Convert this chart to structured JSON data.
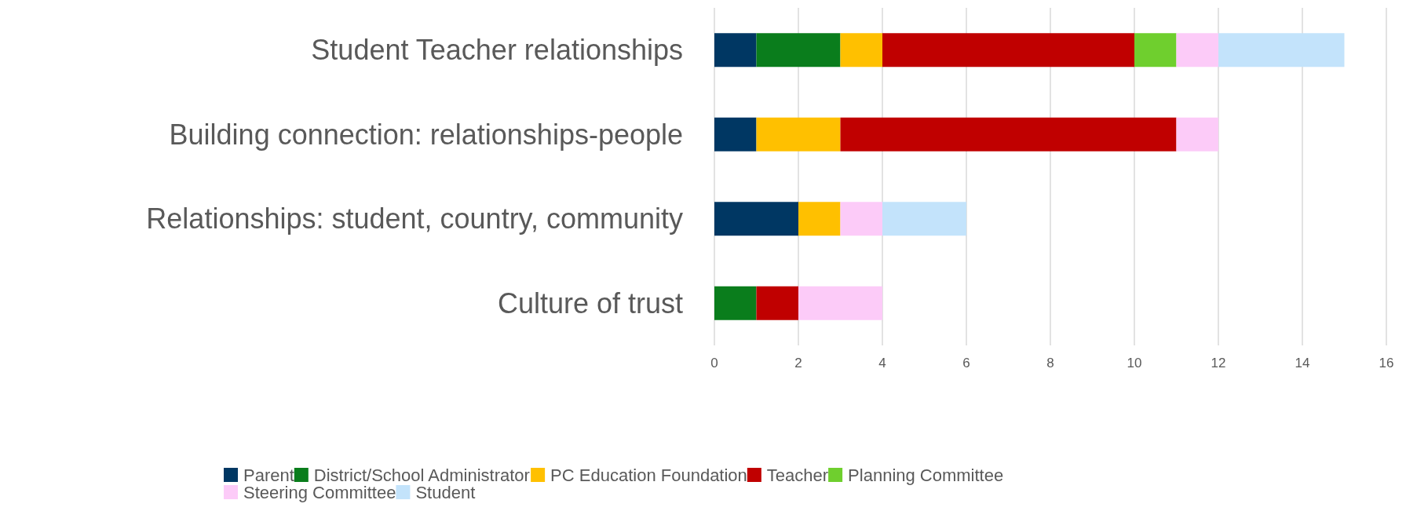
{
  "chart_data": {
    "type": "bar",
    "orientation": "horizontal",
    "stacked": true,
    "categories": [
      "Student Teacher relationships",
      "Building connection: relationships-people",
      "Relationships: student, country, community",
      "Culture of trust"
    ],
    "series": [
      {
        "name": "Parent",
        "color": "#003763",
        "values": [
          1,
          1,
          2,
          null
        ]
      },
      {
        "name": "District/School Administrator",
        "color": "#0a7d1c",
        "values": [
          2,
          null,
          null,
          1
        ]
      },
      {
        "name": "PC Education Foundation",
        "color": "#ffc000",
        "values": [
          1,
          2,
          1,
          null
        ]
      },
      {
        "name": "Teacher",
        "color": "#c00000",
        "values": [
          6,
          8,
          null,
          1
        ]
      },
      {
        "name": "Planning Committee",
        "color": "#6fcf2e",
        "values": [
          1,
          null,
          null,
          null
        ]
      },
      {
        "name": "Steering Committee",
        "color": "#fccbf8",
        "values": [
          1,
          1,
          1,
          2
        ]
      },
      {
        "name": "Student",
        "color": "#c3e3fb",
        "values": [
          3,
          null,
          2,
          null
        ]
      }
    ],
    "xlim": [
      0,
      16
    ],
    "xticks": [
      0,
      2,
      4,
      6,
      8,
      10,
      12,
      14,
      16
    ],
    "grid": "x",
    "legend": "bottom"
  }
}
